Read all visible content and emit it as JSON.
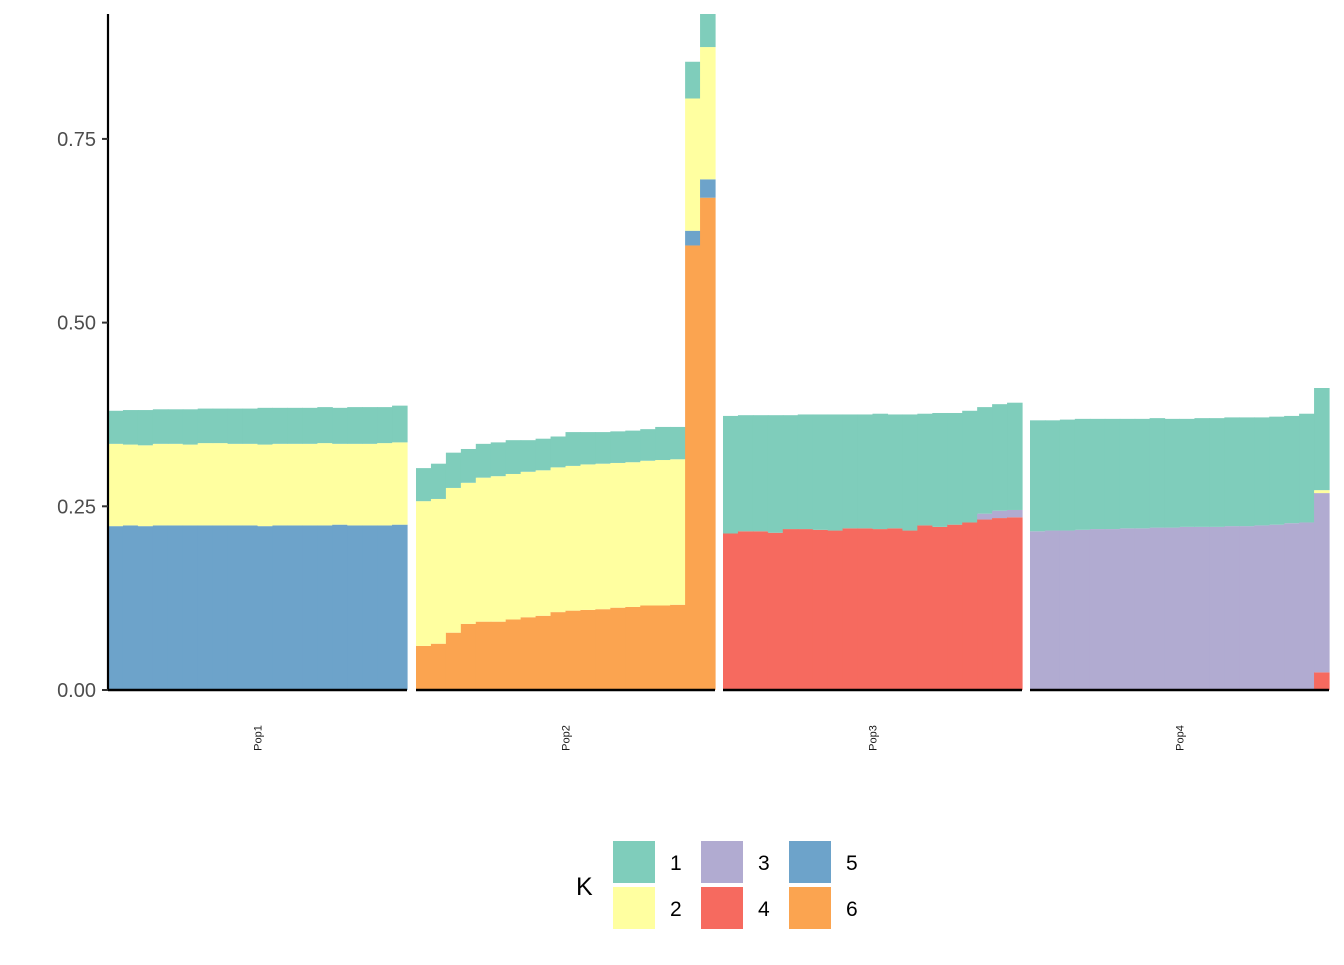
{
  "chart_data": {
    "type": "bar",
    "stacked": true,
    "title": "",
    "xlabel": "",
    "ylabel": "",
    "ylim": [
      0,
      0.92
    ],
    "y_ticks": [
      "0.00",
      "0.25",
      "0.50",
      "0.75"
    ],
    "y_tick_values": [
      0,
      0.25,
      0.5,
      0.75
    ],
    "grid": false,
    "legend": {
      "title": "K",
      "position": "bottom",
      "entries": [
        {
          "key": "1",
          "color": "#7fcdbb"
        },
        {
          "key": "2",
          "color": "#ffffa0"
        },
        {
          "key": "3",
          "color": "#b1abd1"
        },
        {
          "key": "4",
          "color": "#f66a5f"
        },
        {
          "key": "5",
          "color": "#6da3ca"
        },
        {
          "key": "6",
          "color": "#fba450"
        }
      ]
    },
    "stack_order": [
      "6",
      "5",
      "4",
      "3",
      "2",
      "1"
    ],
    "panels": [
      {
        "label": "Pop1",
        "individuals": [
          {
            "5": 0.223,
            "2": 0.112,
            "1": 0.045
          },
          {
            "5": 0.224,
            "2": 0.11,
            "1": 0.047
          },
          {
            "5": 0.223,
            "2": 0.11,
            "1": 0.048
          },
          {
            "5": 0.224,
            "2": 0.111,
            "1": 0.047
          },
          {
            "5": 0.224,
            "2": 0.111,
            "1": 0.047
          },
          {
            "5": 0.224,
            "2": 0.11,
            "1": 0.048
          },
          {
            "5": 0.224,
            "2": 0.112,
            "1": 0.047
          },
          {
            "5": 0.224,
            "2": 0.112,
            "1": 0.047
          },
          {
            "5": 0.224,
            "2": 0.111,
            "1": 0.048
          },
          {
            "5": 0.224,
            "2": 0.111,
            "1": 0.048
          },
          {
            "5": 0.223,
            "2": 0.111,
            "1": 0.05
          },
          {
            "5": 0.224,
            "2": 0.111,
            "1": 0.049
          },
          {
            "5": 0.224,
            "2": 0.111,
            "1": 0.049
          },
          {
            "5": 0.224,
            "2": 0.111,
            "1": 0.049
          },
          {
            "5": 0.224,
            "2": 0.112,
            "1": 0.049
          },
          {
            "5": 0.225,
            "2": 0.11,
            "1": 0.049
          },
          {
            "5": 0.224,
            "2": 0.111,
            "1": 0.05
          },
          {
            "5": 0.224,
            "2": 0.111,
            "1": 0.05
          },
          {
            "5": 0.224,
            "2": 0.112,
            "1": 0.049
          },
          {
            "5": 0.225,
            "2": 0.112,
            "1": 0.05
          }
        ]
      },
      {
        "label": "Pop2",
        "individuals": [
          {
            "6": 0.06,
            "2": 0.197,
            "1": 0.045
          },
          {
            "6": 0.063,
            "2": 0.197,
            "1": 0.048
          },
          {
            "6": 0.078,
            "2": 0.197,
            "1": 0.048
          },
          {
            "6": 0.09,
            "2": 0.192,
            "1": 0.046
          },
          {
            "6": 0.093,
            "2": 0.196,
            "1": 0.046
          },
          {
            "6": 0.093,
            "2": 0.198,
            "1": 0.046
          },
          {
            "6": 0.096,
            "2": 0.198,
            "1": 0.046
          },
          {
            "6": 0.099,
            "2": 0.198,
            "1": 0.043
          },
          {
            "6": 0.101,
            "2": 0.198,
            "1": 0.043
          },
          {
            "6": 0.106,
            "2": 0.197,
            "1": 0.042
          },
          {
            "6": 0.108,
            "2": 0.197,
            "1": 0.046
          },
          {
            "6": 0.109,
            "2": 0.198,
            "1": 0.044
          },
          {
            "6": 0.11,
            "2": 0.198,
            "1": 0.043
          },
          {
            "6": 0.112,
            "2": 0.197,
            "1": 0.043
          },
          {
            "6": 0.113,
            "2": 0.197,
            "1": 0.043
          },
          {
            "6": 0.115,
            "2": 0.197,
            "1": 0.043
          },
          {
            "6": 0.115,
            "2": 0.198,
            "1": 0.045
          },
          {
            "6": 0.116,
            "2": 0.198,
            "1": 0.044
          },
          {
            "6": 0.605,
            "5": 0.02,
            "2": 0.18,
            "1": 0.05
          },
          {
            "6": 0.67,
            "5": 0.025,
            "2": 0.18,
            "1": 0.045
          }
        ]
      },
      {
        "label": "Pop3",
        "individuals": [
          {
            "4": 0.213,
            "1": 0.16
          },
          {
            "4": 0.216,
            "1": 0.158
          },
          {
            "4": 0.216,
            "1": 0.158
          },
          {
            "4": 0.214,
            "1": 0.16
          },
          {
            "4": 0.219,
            "1": 0.155
          },
          {
            "4": 0.219,
            "1": 0.156
          },
          {
            "4": 0.218,
            "1": 0.157
          },
          {
            "4": 0.217,
            "1": 0.158
          },
          {
            "4": 0.22,
            "1": 0.155
          },
          {
            "4": 0.22,
            "1": 0.155
          },
          {
            "4": 0.219,
            "1": 0.157
          },
          {
            "4": 0.22,
            "1": 0.155
          },
          {
            "4": 0.217,
            "1": 0.158
          },
          {
            "4": 0.224,
            "1": 0.152
          },
          {
            "4": 0.222,
            "1": 0.155
          },
          {
            "4": 0.225,
            "1": 0.152
          },
          {
            "4": 0.228,
            "1": 0.152
          },
          {
            "4": 0.232,
            "3": 0.008,
            "1": 0.145
          },
          {
            "4": 0.234,
            "3": 0.01,
            "1": 0.145
          },
          {
            "4": 0.235,
            "3": 0.01,
            "1": 0.146
          }
        ]
      },
      {
        "label": "Pop4",
        "individuals": [
          {
            "3": 0.216,
            "1": 0.151
          },
          {
            "3": 0.217,
            "1": 0.15
          },
          {
            "3": 0.217,
            "1": 0.151
          },
          {
            "3": 0.218,
            "1": 0.151
          },
          {
            "3": 0.219,
            "1": 0.15
          },
          {
            "3": 0.219,
            "1": 0.15
          },
          {
            "3": 0.22,
            "1": 0.149
          },
          {
            "3": 0.22,
            "1": 0.149
          },
          {
            "3": 0.221,
            "1": 0.149
          },
          {
            "3": 0.221,
            "1": 0.148
          },
          {
            "3": 0.222,
            "1": 0.147
          },
          {
            "3": 0.222,
            "1": 0.148
          },
          {
            "3": 0.222,
            "1": 0.148
          },
          {
            "3": 0.223,
            "1": 0.148
          },
          {
            "3": 0.223,
            "1": 0.148
          },
          {
            "3": 0.224,
            "1": 0.147
          },
          {
            "3": 0.225,
            "1": 0.147
          },
          {
            "3": 0.227,
            "1": 0.146
          },
          {
            "3": 0.228,
            "1": 0.148
          },
          {
            "4": 0.024,
            "3": 0.244,
            "2": 0.004,
            "1": 0.139
          }
        ]
      }
    ]
  }
}
